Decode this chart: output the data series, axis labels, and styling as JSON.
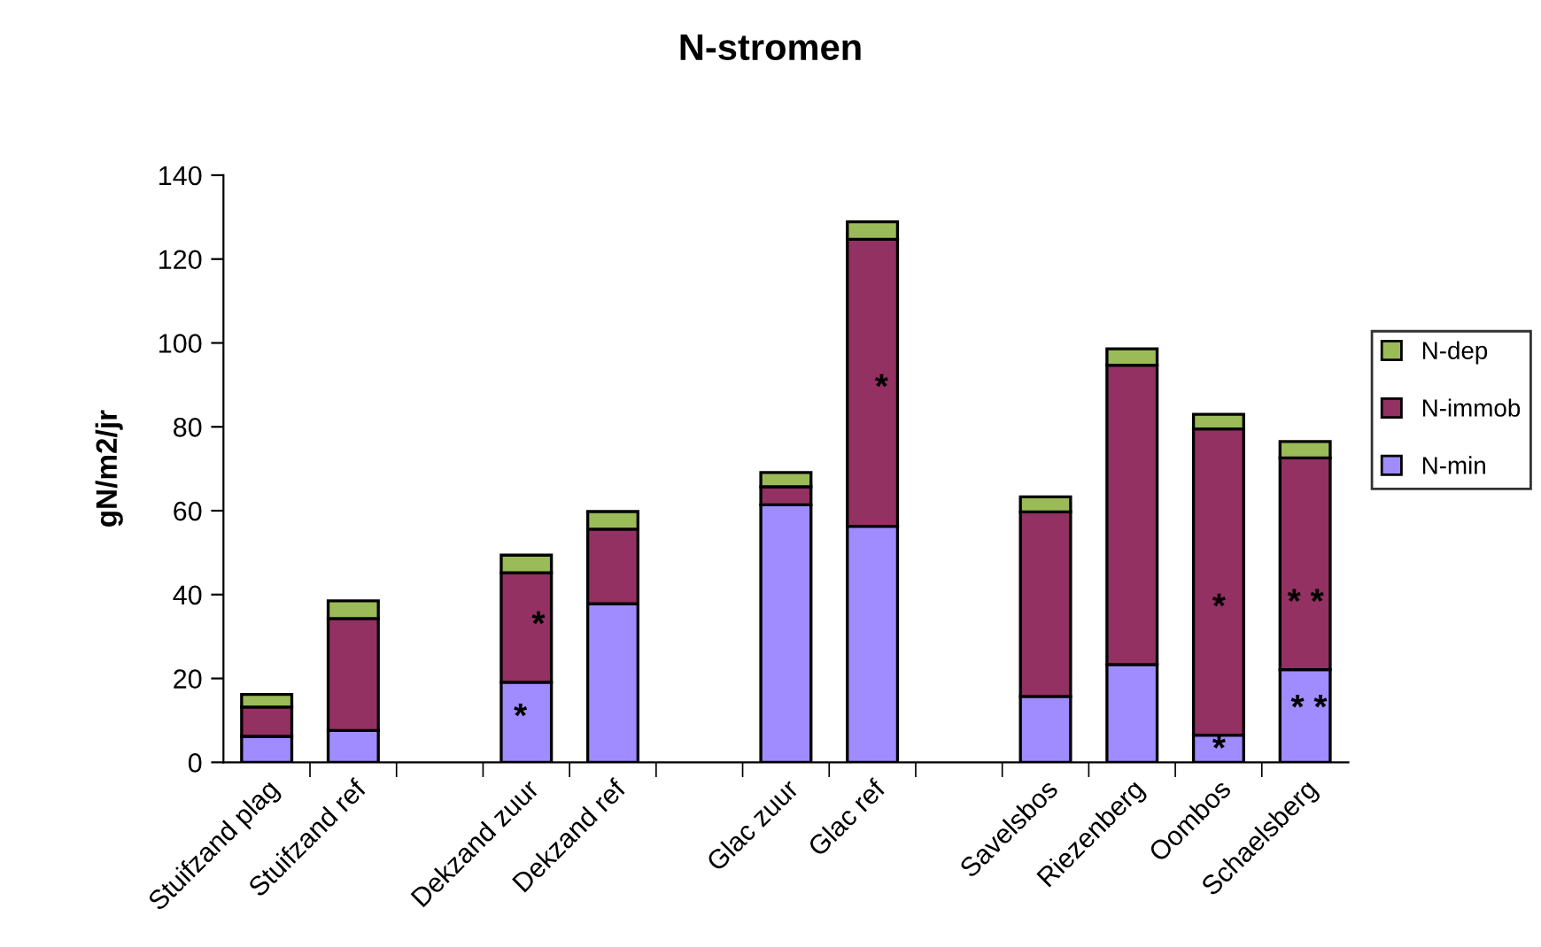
{
  "chart_data": {
    "type": "bar",
    "title": "N-stromen",
    "ylabel": "gN/m2/jr",
    "categories": [
      "Stuifzand plag",
      "Stuifzand ref",
      null,
      "Dekzand zuur",
      "Dekzand ref",
      null,
      "Glac zuur",
      "Glac ref",
      null,
      "Savelsbos",
      "Riezenberg",
      "Oombos",
      "Schaelsberg"
    ],
    "stacked": true,
    "series": [
      {
        "name": "N-min",
        "color": "#a08cff",
        "values": [
          6.2,
          7.6,
          null,
          19.1,
          37.8,
          null,
          61.4,
          56.3,
          null,
          15.7,
          23.3,
          6.5,
          22.1
        ]
      },
      {
        "name": "N-immob",
        "color": "#933162",
        "values": [
          7.0,
          26.7,
          null,
          26.1,
          17.8,
          null,
          4.3,
          68.4,
          null,
          44.0,
          71.4,
          73.0,
          50.5
        ]
      },
      {
        "name": "N-dep",
        "color": "#9bbb59",
        "values": [
          3.0,
          4.2,
          null,
          4.2,
          4.2,
          null,
          3.4,
          4.2,
          null,
          3.6,
          3.9,
          3.5,
          3.9
        ]
      }
    ],
    "ylim": [
      0,
      140
    ],
    "yticks": [
      0,
      20,
      40,
      60,
      80,
      100,
      120,
      140
    ],
    "legend": "right",
    "grid": false,
    "annotations": [
      "*",
      "*",
      "*",
      "*",
      "*",
      "* *",
      "* *"
    ]
  }
}
